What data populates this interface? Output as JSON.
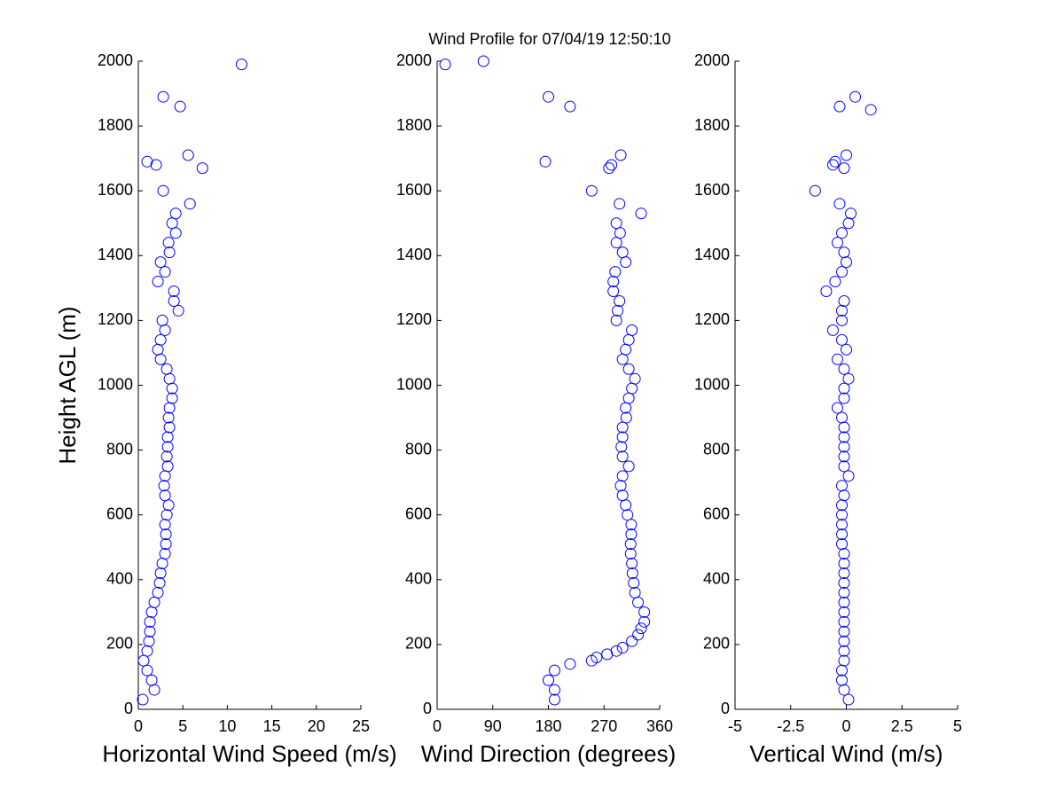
{
  "title": "Wind Profile for  07/04/19 12:50:10",
  "chart_data": [
    {
      "type": "scatter",
      "xlabel": "Horizontal Wind Speed (m/s)",
      "ylabel": "Height AGL (m)",
      "xlim": [
        0,
        25
      ],
      "xticks": [
        0,
        5,
        10,
        15,
        20,
        25
      ],
      "ylim": [
        0,
        2000
      ],
      "yticks": [
        0,
        200,
        400,
        600,
        800,
        1000,
        1200,
        1400,
        1600,
        1800,
        2000
      ],
      "x": [
        0.5,
        1.8,
        1.5,
        1.0,
        0.6,
        1.0,
        1.2,
        1.3,
        1.3,
        1.5,
        1.8,
        2.2,
        2.4,
        2.5,
        2.7,
        3.0,
        3.1,
        3.1,
        3.0,
        3.2,
        3.4,
        3.0,
        2.9,
        3.0,
        3.3,
        3.2,
        3.3,
        3.3,
        3.5,
        3.4,
        3.5,
        3.8,
        3.8,
        3.5,
        3.2,
        2.5,
        2.2,
        2.5,
        3.0,
        2.7,
        4.5,
        4.0,
        4.0,
        2.2,
        3.0,
        2.5,
        3.5,
        3.4,
        4.2,
        3.8,
        4.2,
        5.8,
        2.8,
        7.2,
        2.0,
        1.0,
        5.6,
        4.7,
        2.8,
        11.6
      ],
      "series": [
        {
          "color": "#0000ff",
          "values": [
            30,
            60,
            90,
            120,
            150,
            180,
            210,
            240,
            270,
            300,
            330,
            360,
            390,
            420,
            450,
            480,
            510,
            540,
            570,
            600,
            630,
            660,
            690,
            720,
            750,
            780,
            810,
            840,
            870,
            900,
            930,
            960,
            990,
            1020,
            1050,
            1080,
            1110,
            1140,
            1170,
            1200,
            1230,
            1260,
            1290,
            1320,
            1350,
            1380,
            1410,
            1440,
            1470,
            1500,
            1530,
            1560,
            1600,
            1670,
            1680,
            1690,
            1710,
            1860,
            1890,
            1990
          ]
        }
      ]
    },
    {
      "type": "scatter",
      "xlabel": "Wind Direction (degrees)",
      "xlim": [
        0,
        360
      ],
      "xticks": [
        0,
        90,
        180,
        270,
        360
      ],
      "ylim": [
        0,
        2000
      ],
      "yticks": [
        0,
        200,
        400,
        600,
        800,
        1000,
        1200,
        1400,
        1600,
        1800,
        2000
      ],
      "x": [
        190,
        190,
        180,
        190,
        215,
        250,
        258,
        275,
        290,
        300,
        315,
        325,
        330,
        335,
        335,
        325,
        320,
        318,
        316,
        315,
        313,
        313,
        314,
        314,
        308,
        305,
        300,
        297,
        300,
        310,
        300,
        298,
        300,
        300,
        306,
        305,
        310,
        315,
        320,
        310,
        300,
        305,
        310,
        315,
        290,
        292,
        295,
        285,
        285,
        288,
        305,
        300,
        290,
        296,
        290,
        330,
        295,
        250,
        278,
        282,
        175,
        297,
        215,
        180,
        13,
        75
      ],
      "series": [
        {
          "color": "#0000ff",
          "values": [
            30,
            60,
            90,
            120,
            140,
            150,
            160,
            170,
            180,
            190,
            210,
            230,
            250,
            270,
            300,
            330,
            360,
            390,
            420,
            450,
            480,
            510,
            540,
            570,
            600,
            630,
            660,
            690,
            720,
            750,
            780,
            810,
            840,
            870,
            900,
            930,
            960,
            990,
            1020,
            1050,
            1080,
            1110,
            1140,
            1170,
            1200,
            1230,
            1260,
            1290,
            1320,
            1350,
            1380,
            1410,
            1440,
            1470,
            1500,
            1530,
            1560,
            1600,
            1670,
            1680,
            1690,
            1710,
            1860,
            1890,
            1990,
            2000
          ]
        }
      ]
    },
    {
      "type": "scatter",
      "xlabel": "Vertical Wind (m/s)",
      "xlim": [
        -5,
        5
      ],
      "xticks": [
        -5,
        -2.5,
        0,
        2.5,
        5
      ],
      "ylim": [
        0,
        2000
      ],
      "yticks": [
        0,
        200,
        400,
        600,
        800,
        1000,
        1200,
        1400,
        1600,
        1800,
        2000
      ],
      "x": [
        0.1,
        -0.1,
        -0.2,
        -0.2,
        -0.1,
        -0.1,
        -0.1,
        -0.1,
        -0.1,
        -0.1,
        -0.1,
        -0.1,
        -0.1,
        -0.1,
        -0.1,
        -0.1,
        -0.2,
        -0.2,
        -0.2,
        -0.2,
        -0.2,
        -0.1,
        -0.2,
        0.1,
        -0.1,
        -0.1,
        -0.1,
        -0.1,
        -0.1,
        -0.2,
        -0.4,
        -0.1,
        -0.1,
        0.1,
        -0.1,
        -0.4,
        0,
        -0.2,
        -0.6,
        -0.2,
        -0.2,
        -0.1,
        -0.9,
        -0.5,
        -0.2,
        0,
        -0.1,
        -0.4,
        -0.2,
        0.1,
        0.2,
        -0.3,
        -1.4,
        -0.1,
        -0.6,
        -0.5,
        0,
        1.1,
        -0.3,
        0.4
      ],
      "series": [
        {
          "color": "#0000ff",
          "values": [
            30,
            60,
            90,
            120,
            150,
            180,
            210,
            240,
            270,
            300,
            330,
            360,
            390,
            420,
            450,
            480,
            510,
            540,
            570,
            600,
            630,
            660,
            690,
            720,
            750,
            780,
            810,
            840,
            870,
            900,
            930,
            960,
            990,
            1020,
            1050,
            1080,
            1110,
            1140,
            1170,
            1200,
            1230,
            1260,
            1290,
            1320,
            1350,
            1380,
            1410,
            1440,
            1470,
            1500,
            1530,
            1560,
            1600,
            1670,
            1680,
            1690,
            1710,
            1850,
            1860,
            1890
          ]
        }
      ]
    }
  ]
}
